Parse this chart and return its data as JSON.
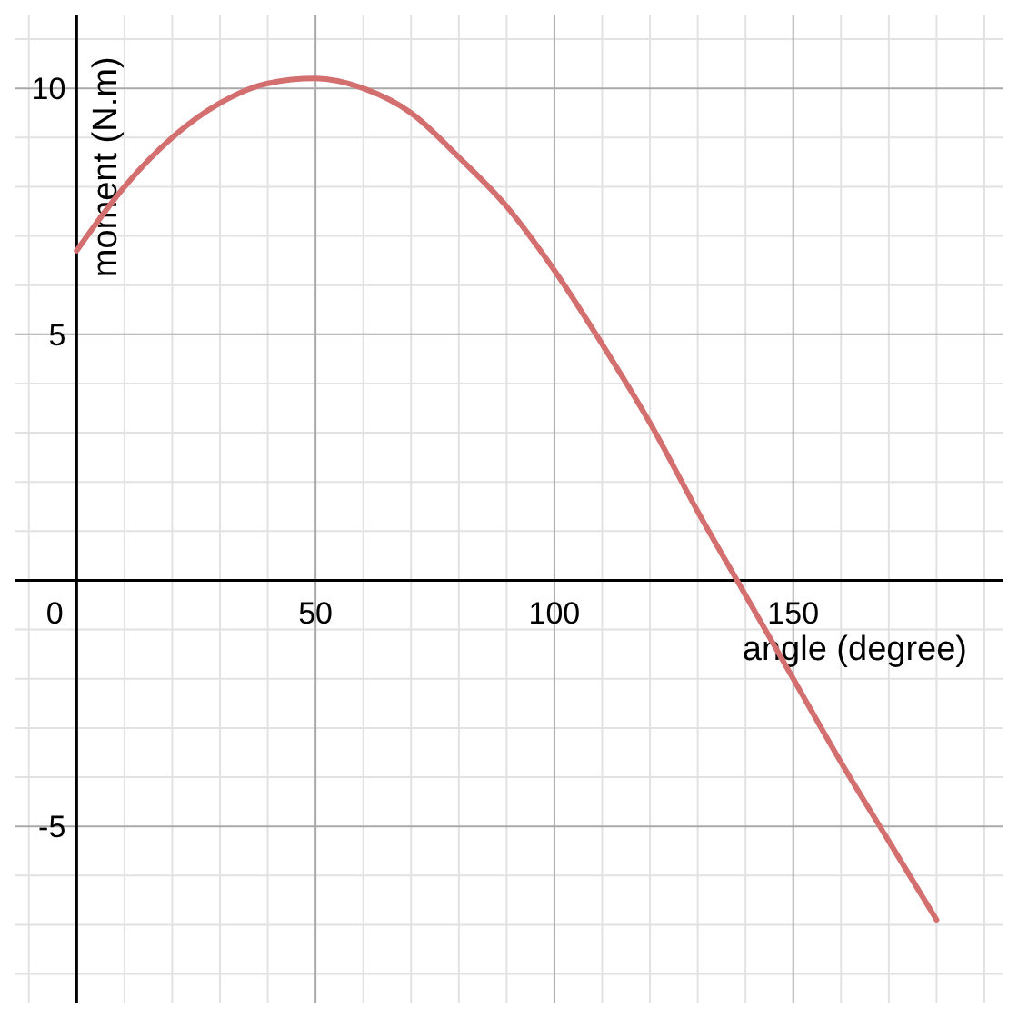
{
  "chart_data": {
    "type": "line",
    "xlabel": "angle (degree)",
    "ylabel": "moment (N.m)",
    "x": [
      0,
      10,
      20,
      30,
      40,
      50,
      60,
      70,
      80,
      90,
      100,
      110,
      120,
      130,
      140,
      150,
      160,
      170,
      180
    ],
    "series": [
      {
        "color": "#d46f6f",
        "values": [
          6.7,
          8.0,
          9.0,
          9.7,
          10.1,
          10.2,
          10.0,
          9.5,
          8.6,
          7.6,
          6.3,
          4.8,
          3.2,
          1.4,
          -0.3,
          -2.0,
          -3.7,
          -5.3,
          -6.9
        ]
      }
    ],
    "xlim": [
      -13,
      194
    ],
    "ylim": [
      -8.6,
      11.5
    ],
    "xticks": [
      {
        "value": -10,
        "label": null
      },
      {
        "value": 0,
        "label": "0"
      },
      {
        "value": 10,
        "label": null
      },
      {
        "value": 20,
        "label": null
      },
      {
        "value": 30,
        "label": null
      },
      {
        "value": 40,
        "label": null
      },
      50,
      {
        "value": 60,
        "label": null
      },
      {
        "value": 70,
        "label": null
      },
      {
        "value": 80,
        "label": null
      },
      {
        "value": 90,
        "label": null
      },
      100,
      {
        "value": 110,
        "label": null
      },
      {
        "value": 120,
        "label": null
      },
      {
        "value": 130,
        "label": null
      },
      {
        "value": 140,
        "label": null
      },
      150,
      {
        "value": 160,
        "label": null
      },
      {
        "value": 170,
        "label": null
      },
      {
        "value": 180,
        "label": null
      },
      {
        "value": 190,
        "label": null
      }
    ],
    "yticks": [
      {
        "value": -8,
        "label": null
      },
      {
        "value": -7,
        "label": null
      },
      {
        "value": -6,
        "label": null
      },
      -5,
      {
        "value": -4,
        "label": null
      },
      {
        "value": -3,
        "label": null
      },
      {
        "value": -2,
        "label": null
      },
      {
        "value": -1,
        "label": null
      },
      {
        "value": 0,
        "label": null
      },
      {
        "value": 1,
        "label": null
      },
      {
        "value": 2,
        "label": null
      },
      {
        "value": 3,
        "label": null
      },
      {
        "value": 4,
        "label": null
      },
      5,
      {
        "value": 6,
        "label": null
      },
      {
        "value": 7,
        "label": null
      },
      {
        "value": 8,
        "label": null
      },
      {
        "value": 9,
        "label": null
      },
      10,
      {
        "value": 11,
        "label": null
      }
    ],
    "grid": true,
    "marker": "none",
    "line_style": "solid"
  }
}
